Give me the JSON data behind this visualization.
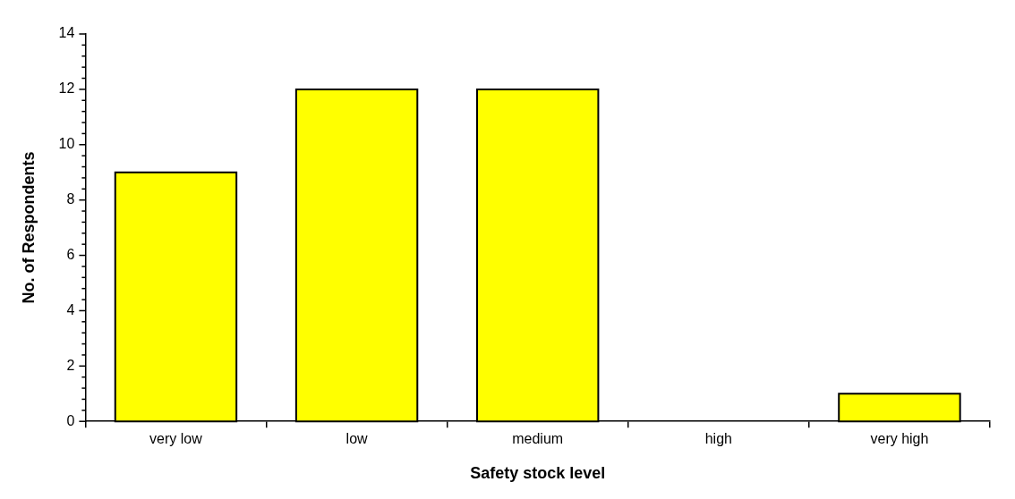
{
  "chart_data": {
    "type": "bar",
    "xlabel": "Safety stock level",
    "ylabel": "No. of Respondents",
    "categories": [
      "very low",
      "low",
      "medium",
      "high",
      "very high"
    ],
    "values": [
      9,
      12,
      12,
      0,
      1
    ],
    "color": "#ffff00",
    "ylim": [
      0,
      14
    ],
    "yticks": [
      0,
      {
        "value": 0.4,
        "label": null
      },
      {
        "value": 0.8,
        "label": null
      },
      {
        "value": 1.2,
        "label": null
      },
      {
        "value": 1.6,
        "label": null
      },
      2,
      {
        "value": 2.4,
        "label": null
      },
      {
        "value": 2.8,
        "label": null
      },
      {
        "value": 3.2,
        "label": null
      },
      {
        "value": 3.6,
        "label": null
      },
      4,
      {
        "value": 4.4,
        "label": null
      },
      {
        "value": 4.8,
        "label": null
      },
      {
        "value": 5.2,
        "label": null
      },
      {
        "value": 5.6,
        "label": null
      },
      6,
      {
        "value": 6.4,
        "label": null
      },
      {
        "value": 6.8,
        "label": null
      },
      {
        "value": 7.2,
        "label": null
      },
      {
        "value": 7.6,
        "label": null
      },
      8,
      {
        "value": 8.4,
        "label": null
      },
      {
        "value": 8.8,
        "label": null
      },
      {
        "value": 9.2,
        "label": null
      },
      {
        "value": 9.6,
        "label": null
      },
      10,
      {
        "value": 10.4,
        "label": null
      },
      {
        "value": 10.8,
        "label": null
      },
      {
        "value": 11.2,
        "label": null
      },
      {
        "value": 11.6,
        "label": null
      },
      12,
      {
        "value": 12.4,
        "label": null
      },
      {
        "value": 12.8,
        "label": null
      },
      {
        "value": 13.2,
        "label": null
      },
      {
        "value": 13.6,
        "label": null
      },
      14
    ],
    "grid": false,
    "legend": false
  }
}
